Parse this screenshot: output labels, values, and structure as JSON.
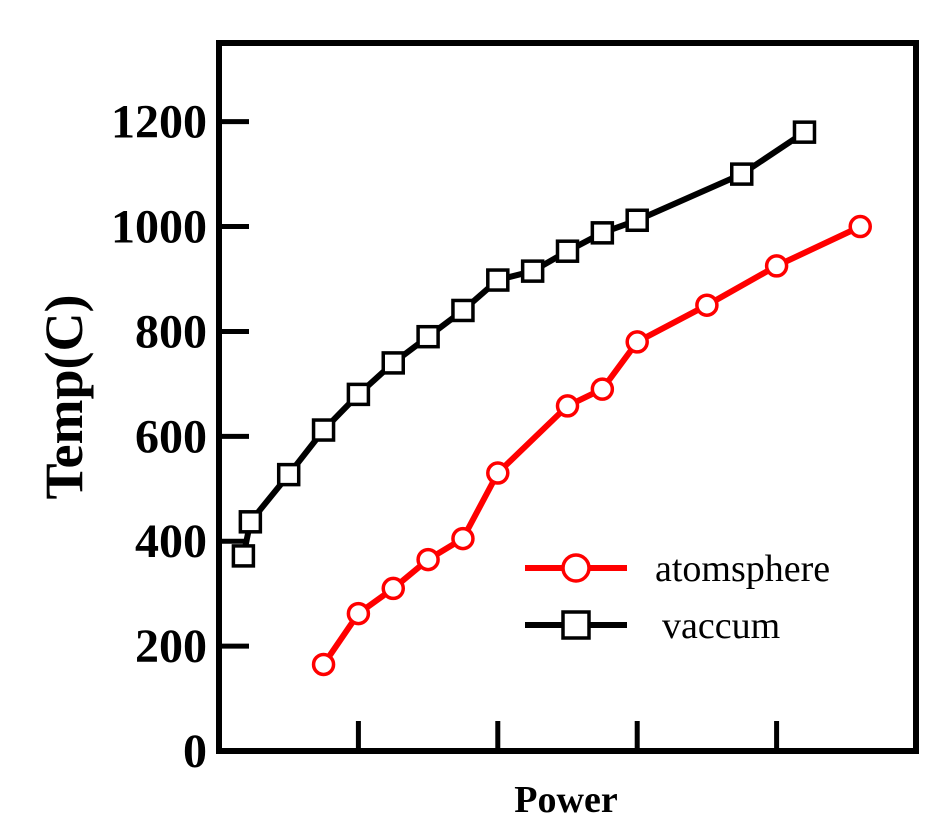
{
  "chart_data": {
    "type": "line",
    "title": "",
    "xlabel": "Power",
    "ylabel": "Temp(C)",
    "xlim": [
      0,
      10
    ],
    "ylim": [
      0,
      1350
    ],
    "yticks": [
      0,
      200,
      400,
      600,
      800,
      1000,
      1200
    ],
    "xticks": [
      2,
      4,
      6,
      8
    ],
    "x_tick_labels_shown": false,
    "grid": false,
    "legend_position": "lower-right",
    "series": [
      {
        "name": "atomsphere",
        "color": "#ff0000",
        "marker": "circle",
        "x": [
          1.5,
          2.0,
          2.5,
          3.0,
          3.5,
          4.0,
          5.0,
          5.5,
          6.0,
          7.0,
          8.0,
          9.2
        ],
        "y": [
          165,
          262,
          310,
          365,
          405,
          530,
          658,
          690,
          780,
          850,
          925,
          1000
        ]
      },
      {
        "name": "vaccum",
        "color": "#000000",
        "marker": "square",
        "x": [
          0.35,
          0.45,
          1.0,
          1.5,
          2.0,
          2.5,
          3.0,
          3.5,
          4.0,
          4.5,
          5.0,
          5.5,
          6.0,
          7.5,
          8.4
        ],
        "y": [
          372,
          437,
          527,
          612,
          680,
          740,
          790,
          840,
          898,
          915,
          953,
          988,
          1012,
          1100,
          1180
        ]
      }
    ]
  }
}
